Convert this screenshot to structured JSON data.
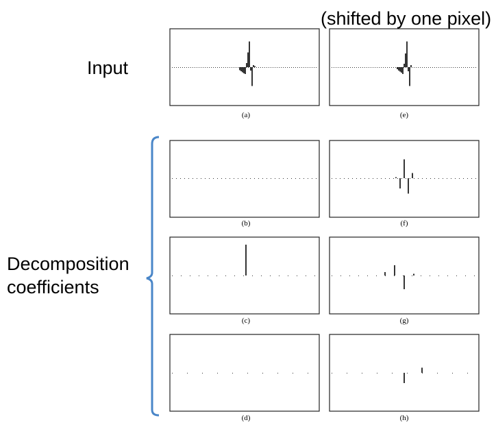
{
  "labels": {
    "shifted": "(shifted by one pixel)",
    "input": "Input",
    "decomposition_line1": "Decomposition",
    "decomposition_line2": "coefficients"
  },
  "bracket_color": "#4a86c8",
  "panels": [
    {
      "id": "a",
      "caption": "(a)",
      "dots": "dense",
      "spikes": [
        {
          "x": -9,
          "v": -0.09
        },
        {
          "x": -7,
          "v": -0.12
        },
        {
          "x": -5,
          "v": -0.15
        },
        {
          "x": -3,
          "v": -0.18
        },
        {
          "x": -1,
          "v": -0.2
        },
        {
          "x": 1,
          "v": 0.12
        },
        {
          "x": 3,
          "v": 0.43
        },
        {
          "x": 5,
          "v": 0.75
        },
        {
          "x": 7,
          "v": -0.1
        },
        {
          "x": 9,
          "v": -0.55
        },
        {
          "x": 11,
          "v": 0.06
        },
        {
          "x": 13,
          "v": 0.03
        }
      ]
    },
    {
      "id": "e",
      "caption": "(e)",
      "dots": "dense",
      "spikes": [
        {
          "x": -10,
          "v": -0.06
        },
        {
          "x": -8,
          "v": -0.1
        },
        {
          "x": -6,
          "v": -0.13
        },
        {
          "x": -4,
          "v": -0.16
        },
        {
          "x": -2,
          "v": -0.2
        },
        {
          "x": 0,
          "v": 0.1
        },
        {
          "x": 2,
          "v": 0.4
        },
        {
          "x": 4,
          "v": 0.75
        },
        {
          "x": 6,
          "v": -0.12
        },
        {
          "x": 8,
          "v": -0.55
        },
        {
          "x": 10,
          "v": 0.06
        }
      ]
    },
    {
      "id": "b",
      "caption": "(b)",
      "dots": "medium",
      "spikes": []
    },
    {
      "id": "f",
      "caption": "(f)",
      "dots": "medium",
      "spikes": [
        {
          "x": -12,
          "v": 0.03
        },
        {
          "x": -6,
          "v": -0.3
        },
        {
          "x": 0,
          "v": 0.55
        },
        {
          "x": 6,
          "v": -0.45
        },
        {
          "x": 12,
          "v": 0.15
        }
      ]
    },
    {
      "id": "c",
      "caption": "(c)",
      "dots": "sparse",
      "spikes": [
        {
          "x": 0,
          "v": 0.9
        }
      ]
    },
    {
      "id": "g",
      "caption": "(g)",
      "dots": "sparse",
      "spikes": [
        {
          "x": -28,
          "v": 0.1
        },
        {
          "x": -14,
          "v": 0.3
        },
        {
          "x": 0,
          "v": -0.4
        },
        {
          "x": 14,
          "v": 0.05
        }
      ]
    },
    {
      "id": "d",
      "caption": "(d)",
      "dots": "very-sparse",
      "spikes": []
    },
    {
      "id": "h",
      "caption": "(h)",
      "dots": "very-sparse",
      "spikes": [
        {
          "x": 0,
          "v": -0.3
        },
        {
          "x": 26,
          "v": 0.15
        }
      ]
    }
  ]
}
